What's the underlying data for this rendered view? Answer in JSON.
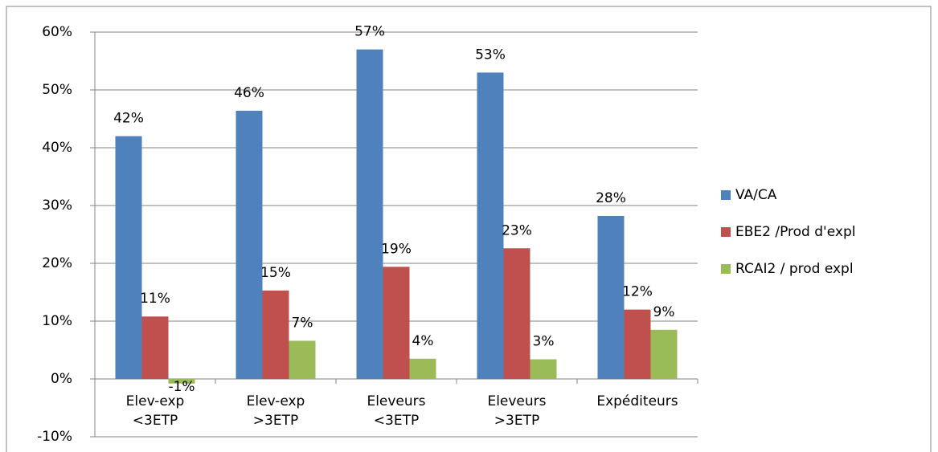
{
  "chart_data": {
    "type": "bar",
    "categories": [
      "Elev-exp <3ETP",
      "Elev-exp >3ETP",
      "Eleveurs <3ETP",
      "Eleveurs >3ETP",
      "Expéditeurs"
    ],
    "series": [
      {
        "name": "VA/CA",
        "color": "#4f81bd",
        "values": [
          42,
          46.4,
          57,
          53,
          28.2
        ],
        "value_labels": [
          "42%",
          "46%",
          "57%",
          "53%",
          "28%"
        ]
      },
      {
        "name": "EBE2 /Prod d'expl",
        "color": "#c0504d",
        "values": [
          10.8,
          15.3,
          19.4,
          22.6,
          12
        ],
        "value_labels": [
          "11%",
          "15%",
          "19%",
          "23%",
          "12%"
        ]
      },
      {
        "name": "RCAI2 / prod expl",
        "color": "#9bbb59",
        "values": [
          -0.8,
          6.6,
          3.5,
          3.4,
          8.5
        ],
        "value_labels": [
          "-1%",
          "7%",
          "4%",
          "3%",
          "9%"
        ]
      }
    ],
    "ylim": [
      -10,
      60
    ],
    "yticks": [
      {
        "value": -10,
        "label": "-10%"
      },
      {
        "value": 0,
        "label": "0%"
      },
      {
        "value": 10,
        "label": "10%"
      },
      {
        "value": 20,
        "label": "20%"
      },
      {
        "value": 30,
        "label": "30%"
      },
      {
        "value": 40,
        "label": "40%"
      },
      {
        "value": 50,
        "label": "50%"
      },
      {
        "value": 60,
        "label": "60%"
      }
    ],
    "grid": true,
    "legend": "right"
  }
}
